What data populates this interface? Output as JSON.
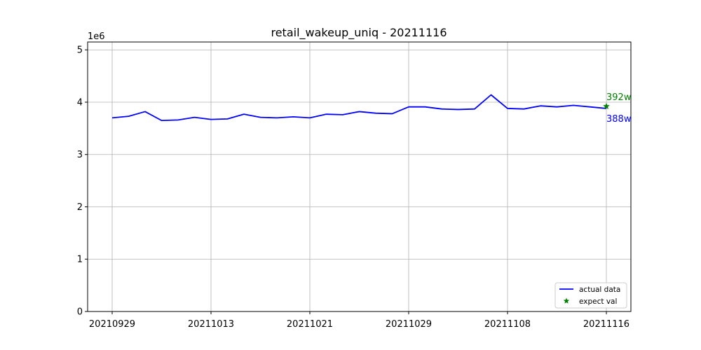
{
  "chart_data": {
    "type": "line",
    "title": "retail_wakeup_uniq - 20211116",
    "y_offset_label": "1e6",
    "xlabel": "",
    "ylabel": "",
    "ylim": [
      0,
      5.15
    ],
    "y_ticks": [
      0,
      1,
      2,
      3,
      4,
      5
    ],
    "x_tick_labels": [
      "20210929",
      "20211013",
      "20211021",
      "20211029",
      "20211108",
      "20211116"
    ],
    "grid": true,
    "legend_position": "lower-right",
    "series": [
      {
        "name": "actual data",
        "color": "#0000ff",
        "values": [
          3.7,
          3.73,
          3.82,
          3.65,
          3.66,
          3.71,
          3.67,
          3.68,
          3.77,
          3.71,
          3.7,
          3.72,
          3.7,
          3.77,
          3.76,
          3.82,
          3.79,
          3.78,
          3.91,
          3.91,
          3.87,
          3.86,
          3.87,
          4.14,
          3.88,
          3.87,
          3.93,
          3.91,
          3.94,
          3.91,
          3.88
        ]
      },
      {
        "name": "expect val",
        "color": "#008000",
        "marker": "star",
        "points": [
          {
            "x_index": 30,
            "y": 3.92
          }
        ]
      }
    ],
    "annotations": [
      {
        "text": "392w",
        "color": "#008000",
        "series": "expect val"
      },
      {
        "text": "388w",
        "color": "#0000ff",
        "series": "actual data"
      }
    ]
  }
}
